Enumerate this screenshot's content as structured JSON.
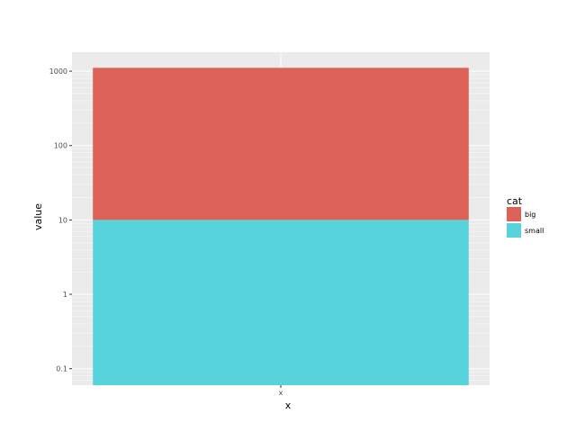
{
  "chart_data": {
    "type": "bar",
    "stacked": true,
    "scale_y": "log10",
    "categories": [
      "x"
    ],
    "series": [
      {
        "name": "small",
        "values": [
          10
        ],
        "color": "#56d3db"
      },
      {
        "name": "big",
        "values": [
          1100
        ],
        "color": "#dc6157"
      }
    ],
    "xlabel": "x",
    "ylabel": "value",
    "yticks": [
      {
        "value": 0.1,
        "label": "0.1"
      },
      {
        "value": 1,
        "label": "1"
      },
      {
        "value": 10,
        "label": "10"
      },
      {
        "value": 100,
        "label": "100"
      },
      {
        "value": 1000,
        "label": "1000"
      }
    ],
    "ylim": [
      0.06,
      1800
    ],
    "legend": {
      "title": "cat",
      "position": "right",
      "items": [
        "big",
        "small"
      ]
    },
    "panel_background": "#ebebeb",
    "grid_color": "#ffffff",
    "grid": true
  }
}
